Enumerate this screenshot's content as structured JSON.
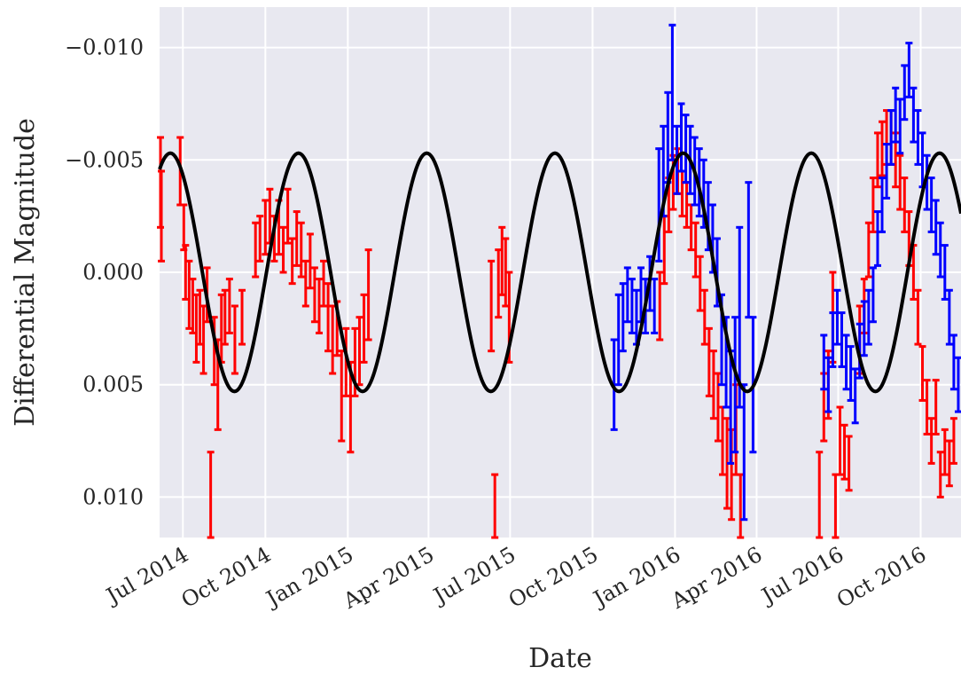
{
  "chart_data": {
    "type": "scatter",
    "title": "",
    "xlabel": "Date",
    "ylabel": "Differential Magnitude",
    "y_inverted": true,
    "xlim": [
      "2014-06-05",
      "2016-11-15"
    ],
    "ylim": [
      0.0118,
      -0.0118
    ],
    "grid": true,
    "background_color": "#e8e8f0",
    "x_ticks": [
      {
        "date": "2014-07-01",
        "label": "Jul 2014"
      },
      {
        "date": "2014-10-01",
        "label": "Oct 2014"
      },
      {
        "date": "2015-01-01",
        "label": "Jan 2015"
      },
      {
        "date": "2015-04-01",
        "label": "Apr 2015"
      },
      {
        "date": "2015-07-01",
        "label": "Jul 2015"
      },
      {
        "date": "2015-10-01",
        "label": "Oct 2015"
      },
      {
        "date": "2016-01-01",
        "label": "Jan 2016"
      },
      {
        "date": "2016-04-01",
        "label": "Apr 2016"
      },
      {
        "date": "2016-07-01",
        "label": "Jul 2016"
      },
      {
        "date": "2016-10-01",
        "label": "Oct 2016"
      }
    ],
    "y_ticks": [
      {
        "value": -0.01,
        "label": "−0.010"
      },
      {
        "value": -0.005,
        "label": "−0.005"
      },
      {
        "value": 0.0,
        "label": "0.000"
      },
      {
        "value": 0.005,
        "label": "0.005"
      },
      {
        "value": 0.01,
        "label": "0.010"
      }
    ],
    "model_curve": {
      "color": "#000000",
      "amplitude": 0.0053,
      "offset": 0.0,
      "peak_dates": [
        "2014-06-17",
        "2014-11-07",
        "2015-03-31",
        "2015-08-21",
        "2016-01-11",
        "2016-06-01",
        "2016-10-22"
      ]
    },
    "series": [
      {
        "color": "#ff0000",
        "points": [
          [
            "2014-06-06",
            -0.004,
            0.002
          ],
          [
            "2014-06-07",
            -0.0025,
            0.002
          ],
          [
            "2014-06-28",
            -0.0045,
            0.0015
          ],
          [
            "2014-07-02",
            -0.002,
            0.001
          ],
          [
            "2014-07-04",
            0.0,
            0.0012
          ],
          [
            "2014-07-08",
            0.001,
            0.0015
          ],
          [
            "2014-07-12",
            0.0015,
            0.0012
          ],
          [
            "2014-07-16",
            0.0025,
            0.0015
          ],
          [
            "2014-07-20",
            0.002,
            0.0012
          ],
          [
            "2014-07-24",
            0.003,
            0.0015
          ],
          [
            "2014-07-28",
            0.001,
            0.0012
          ],
          [
            "2014-08-01",
            0.01,
            0.002
          ],
          [
            "2014-08-05",
            0.0035,
            0.0015
          ],
          [
            "2014-08-09",
            0.005,
            0.002
          ],
          [
            "2014-08-13",
            0.0025,
            0.0015
          ],
          [
            "2014-08-17",
            0.002,
            0.0012
          ],
          [
            "2014-08-22",
            0.0015,
            0.0012
          ],
          [
            "2014-08-28",
            0.003,
            0.0015
          ],
          [
            "2014-09-05",
            0.002,
            0.0012
          ],
          [
            "2014-09-20",
            -0.001,
            0.0012
          ],
          [
            "2014-09-25",
            -0.0015,
            0.001
          ],
          [
            "2014-10-01",
            -0.002,
            0.0012
          ],
          [
            "2014-10-06",
            -0.0025,
            0.0012
          ],
          [
            "2014-10-11",
            -0.0015,
            0.001
          ],
          [
            "2014-10-16",
            -0.002,
            0.0012
          ],
          [
            "2014-10-21",
            -0.001,
            0.001
          ],
          [
            "2014-10-26",
            -0.0025,
            0.0012
          ],
          [
            "2014-10-31",
            -0.0005,
            0.001
          ],
          [
            "2014-11-05",
            -0.0015,
            0.0012
          ],
          [
            "2014-11-10",
            -0.001,
            0.0012
          ],
          [
            "2014-11-15",
            0.0005,
            0.001
          ],
          [
            "2014-11-20",
            -0.0005,
            0.0012
          ],
          [
            "2014-11-25",
            0.001,
            0.0012
          ],
          [
            "2014-11-30",
            0.0015,
            0.0012
          ],
          [
            "2014-12-05",
            0.0005,
            0.001
          ],
          [
            "2014-12-10",
            0.002,
            0.0015
          ],
          [
            "2014-12-15",
            0.003,
            0.0015
          ],
          [
            "2014-12-20",
            0.0025,
            0.0012
          ],
          [
            "2014-12-25",
            0.0055,
            0.002
          ],
          [
            "2014-12-30",
            0.004,
            0.0015
          ],
          [
            "2015-01-04",
            0.006,
            0.002
          ],
          [
            "2015-01-09",
            0.004,
            0.0015
          ],
          [
            "2015-01-14",
            0.0035,
            0.0015
          ],
          [
            "2015-01-19",
            0.0025,
            0.0015
          ],
          [
            "2015-01-24",
            0.001,
            0.002
          ],
          [
            "2015-06-10",
            0.0015,
            0.002
          ],
          [
            "2015-06-14",
            0.011,
            0.002
          ],
          [
            "2015-06-18",
            0.0005,
            0.0015
          ],
          [
            "2015-06-22",
            -0.0005,
            0.0015
          ],
          [
            "2015-06-26",
            0.0,
            0.0015
          ],
          [
            "2015-06-30",
            0.002,
            0.002
          ],
          [
            "2015-12-15",
            0.0015,
            0.0015
          ],
          [
            "2015-12-20",
            -0.001,
            0.0015
          ],
          [
            "2015-12-25",
            -0.003,
            0.0012
          ],
          [
            "2015-12-30",
            -0.004,
            0.0012
          ],
          [
            "2016-01-04",
            -0.0045,
            0.001
          ],
          [
            "2016-01-09",
            -0.0035,
            0.001
          ],
          [
            "2016-01-14",
            -0.003,
            0.001
          ],
          [
            "2016-01-19",
            -0.002,
            0.001
          ],
          [
            "2016-01-24",
            -0.001,
            0.0012
          ],
          [
            "2016-01-29",
            0.0005,
            0.0012
          ],
          [
            "2016-02-03",
            0.002,
            0.0012
          ],
          [
            "2016-02-08",
            0.004,
            0.0015
          ],
          [
            "2016-02-13",
            0.005,
            0.0015
          ],
          [
            "2016-02-18",
            0.006,
            0.0015
          ],
          [
            "2016-02-23",
            0.0075,
            0.0015
          ],
          [
            "2016-02-28",
            0.0085,
            0.002
          ],
          [
            "2016-03-04",
            0.009,
            0.002
          ],
          [
            "2016-03-09",
            0.007,
            0.002
          ],
          [
            "2016-03-14",
            0.011,
            0.002
          ],
          [
            "2016-06-10",
            0.01,
            0.002
          ],
          [
            "2016-06-15",
            0.006,
            0.0015
          ],
          [
            "2016-06-20",
            0.005,
            0.0015
          ],
          [
            "2016-06-25",
            0.002,
            0.002
          ],
          [
            "2016-06-28",
            0.011,
            0.002
          ],
          [
            "2016-07-03",
            0.0075,
            0.0015
          ],
          [
            "2016-07-08",
            0.008,
            0.0012
          ],
          [
            "2016-07-13",
            0.0085,
            0.0012
          ],
          [
            "2016-07-25",
            0.003,
            0.0015
          ],
          [
            "2016-07-30",
            0.0015,
            0.0012
          ],
          [
            "2016-08-04",
            -0.001,
            0.0012
          ],
          [
            "2016-08-09",
            -0.003,
            0.0012
          ],
          [
            "2016-08-14",
            -0.005,
            0.0012
          ],
          [
            "2016-08-19",
            -0.0055,
            0.0012
          ],
          [
            "2016-08-24",
            -0.006,
            0.0012
          ],
          [
            "2016-08-29",
            -0.006,
            0.0012
          ],
          [
            "2016-09-03",
            -0.005,
            0.0012
          ],
          [
            "2016-09-08",
            -0.004,
            0.0012
          ],
          [
            "2016-09-13",
            -0.003,
            0.0012
          ],
          [
            "2016-09-18",
            -0.0015,
            0.0012
          ],
          [
            "2016-09-23",
            0.0,
            0.0012
          ],
          [
            "2016-09-28",
            0.002,
            0.0012
          ],
          [
            "2016-10-03",
            0.0045,
            0.0012
          ],
          [
            "2016-10-08",
            0.006,
            0.0012
          ],
          [
            "2016-10-13",
            0.0075,
            0.001
          ],
          [
            "2016-10-18",
            0.006,
            0.0012
          ],
          [
            "2016-10-23",
            0.009,
            0.001
          ],
          [
            "2016-10-28",
            0.008,
            0.001
          ],
          [
            "2016-11-02",
            0.0085,
            0.001
          ],
          [
            "2016-11-07",
            0.0075,
            0.001
          ]
        ]
      },
      {
        "color": "#0000ff",
        "points": [
          [
            "2015-10-25",
            0.005,
            0.002
          ],
          [
            "2015-10-30",
            0.003,
            0.002
          ],
          [
            "2015-11-04",
            0.002,
            0.0015
          ],
          [
            "2015-11-09",
            0.001,
            0.0012
          ],
          [
            "2015-11-14",
            0.0015,
            0.0012
          ],
          [
            "2015-11-19",
            0.002,
            0.0012
          ],
          [
            "2015-11-24",
            0.001,
            0.0012
          ],
          [
            "2015-11-29",
            0.0015,
            0.0012
          ],
          [
            "2015-12-04",
            0.0005,
            0.0012
          ],
          [
            "2015-12-09",
            0.0015,
            0.0012
          ],
          [
            "2015-12-14",
            -0.003,
            0.0025
          ],
          [
            "2015-12-19",
            -0.0045,
            0.002
          ],
          [
            "2015-12-24",
            -0.006,
            0.002
          ],
          [
            "2015-12-29",
            -0.008,
            0.003
          ],
          [
            "2016-01-03",
            -0.005,
            0.0015
          ],
          [
            "2016-01-08",
            -0.006,
            0.0015
          ],
          [
            "2016-01-13",
            -0.0055,
            0.0015
          ],
          [
            "2016-01-18",
            -0.005,
            0.0015
          ],
          [
            "2016-01-23",
            -0.0045,
            0.0015
          ],
          [
            "2016-01-28",
            -0.004,
            0.0015
          ],
          [
            "2016-02-02",
            -0.0035,
            0.0015
          ],
          [
            "2016-02-07",
            -0.0025,
            0.0015
          ],
          [
            "2016-02-12",
            -0.0015,
            0.0015
          ],
          [
            "2016-02-17",
            0.0,
            0.0015
          ],
          [
            "2016-02-22",
            0.003,
            0.002
          ],
          [
            "2016-02-27",
            0.004,
            0.002
          ],
          [
            "2016-03-03",
            0.006,
            0.0025
          ],
          [
            "2016-03-08",
            0.005,
            0.003
          ],
          [
            "2016-03-13",
            0.002,
            0.004
          ],
          [
            "2016-03-18",
            0.008,
            0.003
          ],
          [
            "2016-03-23",
            -0.001,
            0.003
          ],
          [
            "2016-03-28",
            0.005,
            0.003
          ],
          [
            "2016-06-15",
            0.004,
            0.0012
          ],
          [
            "2016-06-20",
            0.005,
            0.0012
          ],
          [
            "2016-06-25",
            0.003,
            0.0012
          ],
          [
            "2016-06-30",
            0.002,
            0.0012
          ],
          [
            "2016-07-05",
            0.003,
            0.0012
          ],
          [
            "2016-07-10",
            0.004,
            0.0012
          ],
          [
            "2016-07-15",
            0.0045,
            0.0012
          ],
          [
            "2016-07-20",
            0.0055,
            0.0012
          ],
          [
            "2016-07-25",
            0.0035,
            0.0012
          ],
          [
            "2016-07-30",
            0.0025,
            0.0012
          ],
          [
            "2016-08-04",
            0.002,
            0.0012
          ],
          [
            "2016-08-09",
            0.001,
            0.0012
          ],
          [
            "2016-08-14",
            -0.0015,
            0.0012
          ],
          [
            "2016-08-19",
            -0.003,
            0.0012
          ],
          [
            "2016-08-24",
            -0.0045,
            0.0012
          ],
          [
            "2016-08-29",
            -0.006,
            0.0012
          ],
          [
            "2016-09-03",
            -0.007,
            0.0012
          ],
          [
            "2016-09-08",
            -0.0065,
            0.0012
          ],
          [
            "2016-09-13",
            -0.008,
            0.0012
          ],
          [
            "2016-09-18",
            -0.009,
            0.0012
          ],
          [
            "2016-09-23",
            -0.007,
            0.0012
          ],
          [
            "2016-09-28",
            -0.006,
            0.0012
          ],
          [
            "2016-10-03",
            -0.005,
            0.0012
          ],
          [
            "2016-10-08",
            -0.004,
            0.0012
          ],
          [
            "2016-10-13",
            -0.003,
            0.0012
          ],
          [
            "2016-10-18",
            -0.002,
            0.0012
          ],
          [
            "2016-10-23",
            -0.001,
            0.0012
          ],
          [
            "2016-10-28",
            0.0,
            0.0012
          ],
          [
            "2016-11-02",
            0.002,
            0.0012
          ],
          [
            "2016-11-07",
            0.004,
            0.0012
          ],
          [
            "2016-11-12",
            0.005,
            0.0012
          ]
        ]
      }
    ]
  }
}
